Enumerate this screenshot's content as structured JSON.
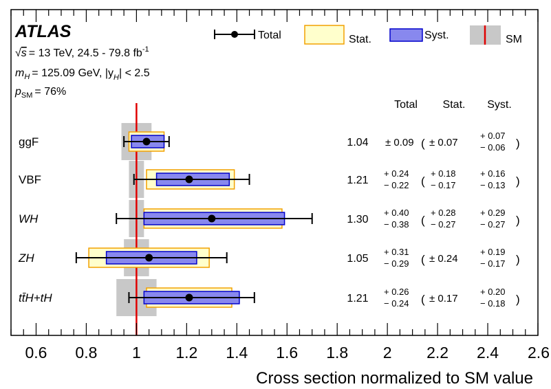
{
  "experiment": "ATLAS",
  "header": {
    "sqrt_s_prefix": "√",
    "sqrt_s_var": "s",
    "energy_text": "= 13 TeV, 24.5 - 79.8 fb",
    "energy_sup": "-1",
    "mass_var": "m",
    "mass_sub": "H",
    "mass_text": "= 125.09 GeV, |y",
    "rap_sub": "H",
    "rap_text": "| < 2.5",
    "psm_var": "p",
    "psm_sub": "SM",
    "psm_text": "= 76%"
  },
  "columns": {
    "total": "Total",
    "stat": "Stat.",
    "syst": "Syst."
  },
  "legend": {
    "total": "Total",
    "stat": "Stat.",
    "syst": "Syst.",
    "sm": "SM"
  },
  "colors": {
    "stat_fill": "#ffffcc",
    "stat_border": "#f2a000",
    "syst_fill": "#8888ee",
    "syst_border": "#0000cc",
    "sm_band": "#c8c8c8",
    "sm_line": "#e00000",
    "total": "#000000"
  },
  "chart_data": {
    "type": "scatter",
    "xlabel": "Cross section normalized to SM value",
    "xlim": [
      0.5,
      2.6
    ],
    "xticks": [
      "0.6",
      "0.8",
      "1",
      "1.2",
      "1.4",
      "1.6",
      "1.8",
      "2",
      "2.2",
      "2.4",
      "2.6"
    ],
    "sm_value": 1.0,
    "series": [
      {
        "label": "ggF",
        "italic": false,
        "value": 1.04,
        "value_text": "1.04",
        "total": [
          0.09,
          0.09
        ],
        "stat": [
          0.07,
          0.07
        ],
        "syst": [
          0.07,
          0.06
        ],
        "sm_unc": [
          0.06,
          0.06
        ],
        "total_up": "",
        "total_dn": "",
        "total_sym": "± 0.09",
        "stat_up": "",
        "stat_dn": "",
        "stat_sym": "± 0.07",
        "syst_up": "+ 0.07",
        "syst_dn": "− 0.06",
        "syst_sym": ""
      },
      {
        "label": "VBF",
        "italic": false,
        "value": 1.21,
        "value_text": "1.21",
        "total": [
          0.24,
          0.22
        ],
        "stat": [
          0.18,
          0.17
        ],
        "syst": [
          0.16,
          0.13
        ],
        "sm_unc": [
          0.03,
          0.03
        ],
        "total_up": "+ 0.24",
        "total_dn": "− 0.22",
        "total_sym": "",
        "stat_up": "+ 0.18",
        "stat_dn": "− 0.17",
        "stat_sym": "",
        "syst_up": "+ 0.16",
        "syst_dn": "− 0.13",
        "syst_sym": ""
      },
      {
        "label": "WH",
        "italic": true,
        "value": 1.3,
        "value_text": "1.30",
        "total": [
          0.4,
          0.38
        ],
        "stat": [
          0.28,
          0.27
        ],
        "syst": [
          0.29,
          0.27
        ],
        "sm_unc": [
          0.03,
          0.03
        ],
        "total_up": "+ 0.40",
        "total_dn": "− 0.38",
        "total_sym": "",
        "stat_up": "+ 0.28",
        "stat_dn": "− 0.27",
        "stat_sym": "",
        "syst_up": "+ 0.29",
        "syst_dn": "− 0.27",
        "syst_sym": ""
      },
      {
        "label": "ZH",
        "italic": true,
        "value": 1.05,
        "value_text": "1.05",
        "total": [
          0.31,
          0.29
        ],
        "stat": [
          0.24,
          0.24
        ],
        "syst": [
          0.19,
          0.17
        ],
        "sm_unc": [
          0.05,
          0.05
        ],
        "total_up": "+ 0.31",
        "total_dn": "− 0.29",
        "total_sym": "",
        "stat_up": "",
        "stat_dn": "",
        "stat_sym": "± 0.24",
        "syst_up": "+ 0.19",
        "syst_dn": "− 0.17",
        "syst_sym": ""
      },
      {
        "label": "tt̄H+tH",
        "italic": true,
        "value": 1.21,
        "value_text": "1.21",
        "total": [
          0.26,
          0.24
        ],
        "stat": [
          0.17,
          0.17
        ],
        "syst": [
          0.2,
          0.18
        ],
        "sm_unc": [
          0.08,
          0.08
        ],
        "total_up": "+ 0.26",
        "total_dn": "− 0.24",
        "total_sym": "",
        "stat_up": "",
        "stat_dn": "",
        "stat_sym": "± 0.17",
        "syst_up": "+ 0.20",
        "syst_dn": "− 0.18",
        "syst_sym": ""
      }
    ]
  }
}
